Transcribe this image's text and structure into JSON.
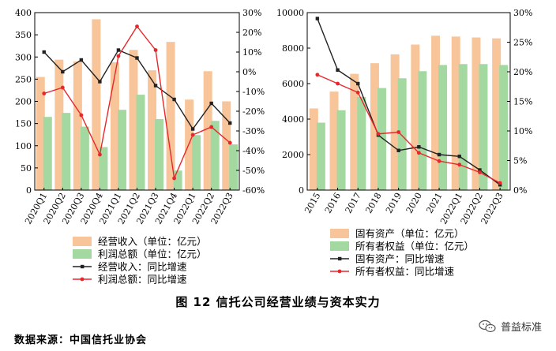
{
  "chart_data": [
    {
      "type": "bar",
      "panel": "left",
      "categories": [
        "2020Q1",
        "2020Q2",
        "2020Q3",
        "2020Q4",
        "2021Q1",
        "2021Q2",
        "2021Q3",
        "2021Q4",
        "2022Q1",
        "2022Q2",
        "2022Q3"
      ],
      "ylim": [
        0,
        400
      ],
      "yticks": [
        0,
        50,
        100,
        150,
        200,
        250,
        300,
        350,
        400
      ],
      "y2lim": [
        -60,
        30
      ],
      "y2ticks": [
        "-60%",
        "-50%",
        "-40%",
        "-30%",
        "-20%",
        "-10%",
        "0%",
        "10%",
        "20%",
        "30%"
      ],
      "y2tick_values": [
        -60,
        -50,
        -40,
        -30,
        -20,
        -10,
        0,
        10,
        20,
        30
      ],
      "series": [
        {
          "name": "经营收入（单位：亿元）",
          "kind": "bar",
          "color": "#F8C59A",
          "values": [
            255,
            294,
            290,
            385,
            288,
            316,
            270,
            334,
            204,
            268,
            200
          ]
        },
        {
          "name": "利润总额（单位：亿元）",
          "kind": "bar",
          "color": "#A3D9A0",
          "values": [
            165,
            174,
            143,
            97,
            181,
            215,
            160,
            44,
            124,
            156,
            103
          ]
        },
        {
          "name": "经营收入：同比增速",
          "kind": "line",
          "axis": "right",
          "color": "#222222",
          "values": [
            10,
            0,
            6,
            -5,
            11,
            7,
            -7,
            -14,
            -29,
            -16,
            -26
          ]
        },
        {
          "name": "利润总额：同比增速",
          "kind": "line",
          "axis": "right",
          "color": "#E8272A",
          "values": [
            -11,
            -8,
            -22,
            -42,
            8,
            23,
            11,
            -54,
            -32,
            -28,
            -36
          ]
        }
      ],
      "title": "",
      "xlabel": "",
      "ylabel": ""
    },
    {
      "type": "bar",
      "panel": "right",
      "categories": [
        "2015",
        "2016",
        "2017",
        "2018",
        "2019",
        "2020",
        "2021",
        "2022Q1",
        "2022Q2",
        "2022Q3"
      ],
      "ylim": [
        0,
        10000
      ],
      "yticks": [
        0,
        2000,
        4000,
        6000,
        8000,
        10000
      ],
      "y2lim": [
        0,
        30
      ],
      "y2ticks": [
        "0%",
        "5%",
        "10%",
        "15%",
        "20%",
        "25%",
        "30%"
      ],
      "y2tick_values": [
        0,
        5,
        10,
        15,
        20,
        25,
        30
      ],
      "series": [
        {
          "name": "固有资产（单位：亿元）",
          "kind": "bar",
          "color": "#F8C59A",
          "values": [
            4600,
            5550,
            6550,
            7150,
            7650,
            8200,
            8700,
            8650,
            8600,
            8550
          ]
        },
        {
          "name": "所有者权益（单位：亿元）",
          "kind": "bar",
          "color": "#A3D9A0",
          "values": [
            3800,
            4500,
            5250,
            5750,
            6300,
            6700,
            7050,
            7100,
            7100,
            7050
          ]
        },
        {
          "name": "固有资产：同比增速",
          "kind": "line",
          "axis": "right",
          "color": "#222222",
          "values": [
            29,
            20.3,
            18,
            9.3,
            6.7,
            7.3,
            6,
            5.7,
            3.4,
            0.9
          ]
        },
        {
          "name": "所有者权益：同比增速",
          "kind": "line",
          "axis": "right",
          "color": "#E8272A",
          "values": [
            19.5,
            18,
            16.5,
            9.5,
            9.8,
            6.3,
            4.9,
            4.3,
            3,
            1.2
          ]
        }
      ],
      "title": "",
      "xlabel": "",
      "ylabel": ""
    }
  ],
  "caption": "图 12   信托公司经营业绩与资本实力",
  "source": "数据来源：中国信托业协会",
  "watermark": "普益标准"
}
